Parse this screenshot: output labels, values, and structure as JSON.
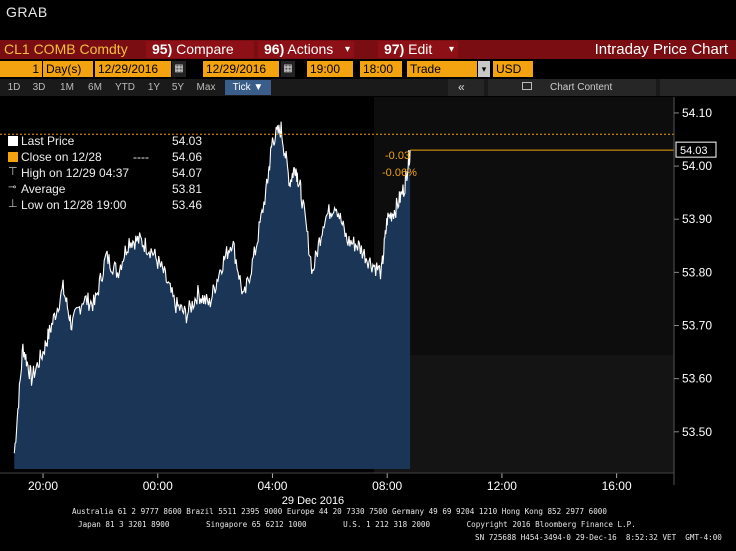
{
  "app_title": "GRAB",
  "command_bar": {
    "ticker": "CL1 COMB Comdty",
    "compare": {
      "num": "95)",
      "label": "Compare"
    },
    "actions": {
      "num": "96)",
      "label": "Actions"
    },
    "edit": {
      "num": "97)",
      "label": "Edit"
    },
    "screen_title": "Intraday Price Chart"
  },
  "settings": {
    "period_count": "1",
    "period_unit": "Day(s)",
    "start_date": "12/29/2016",
    "end_date": "12/29/2016",
    "start_time": "19:00",
    "end_time": "18:00",
    "field": "Trade",
    "currency": "USD"
  },
  "toolbar": {
    "ranges": [
      "1D",
      "3D",
      "1M",
      "6M",
      "YTD",
      "1Y",
      "5Y",
      "Max"
    ],
    "interval": "Tick",
    "chart_content": "Chart Content"
  },
  "legend": {
    "last_price": {
      "label": "Last Price",
      "value": "54.03"
    },
    "close": {
      "label": "Close on 12/28",
      "dashes": "----",
      "value": "54.06"
    },
    "high": {
      "label": "High on 12/29 04:37",
      "value": "54.07"
    },
    "average": {
      "label": "Average",
      "value": "53.81"
    },
    "low": {
      "label": "Low on 12/28 19:00",
      "value": "53.46"
    }
  },
  "change": {
    "abs": "-0.03",
    "pct": "-0.06%"
  },
  "colors": {
    "accent_orange": "#f2a30f",
    "command_red": "#7a0d12",
    "area_fill": "#1b3557",
    "line": "#ffffff"
  },
  "chart_data": {
    "type": "area",
    "x_tick_labels": [
      "20:00",
      "00:00",
      "04:00",
      "08:00",
      "12:00",
      "16:00"
    ],
    "date_label": "29 Dec 2016",
    "y_tick_labels": [
      "54.10",
      "54.00",
      "53.90",
      "53.80",
      "53.70",
      "53.60",
      "53.50"
    ],
    "y_ticks": [
      54.1,
      54.0,
      53.9,
      53.8,
      53.7,
      53.6,
      53.5
    ],
    "ylim": [
      53.43,
      54.13
    ],
    "x_range_hours": [
      18.5,
      42
    ],
    "last_price_label": "54.03",
    "last_price": 54.03,
    "prev_close": 54.06,
    "series": [
      {
        "x": [
          19.0,
          19.3,
          19.6,
          20.0,
          20.3,
          20.7,
          21.0,
          21.4,
          21.8,
          22.2,
          22.6,
          23.0,
          23.4,
          23.8,
          24.2,
          24.6,
          25.0,
          25.4,
          25.8,
          26.2,
          26.6,
          27.0,
          27.4,
          27.8,
          28.0,
          28.3,
          28.6,
          28.8,
          29.0,
          29.4,
          29.8,
          30.2,
          30.6,
          31.0,
          31.4,
          31.8,
          32.0,
          32.3,
          32.6,
          32.8
        ],
        "y": [
          53.46,
          53.66,
          53.6,
          53.65,
          53.7,
          53.77,
          53.7,
          53.75,
          53.74,
          53.83,
          53.8,
          53.86,
          53.86,
          53.84,
          53.8,
          53.74,
          53.72,
          53.76,
          53.74,
          53.81,
          53.86,
          53.75,
          53.84,
          53.96,
          54.05,
          54.07,
          53.97,
          54.0,
          53.95,
          53.8,
          53.9,
          53.93,
          53.86,
          53.85,
          53.82,
          53.8,
          53.9,
          53.92,
          53.96,
          54.03
        ]
      }
    ]
  },
  "footer": {
    "line1": "Australia 61 2 9777 8600 Brazil 5511 2395 9000 Europe 44 20 7330 7500 Germany 49 69 9204 1210 Hong Kong 852 2977 6000",
    "line2": "Japan 81 3 3201 8900        Singapore 65 6212 1000        U.S. 1 212 318 2000        Copyright 2016 Bloomberg Finance L.P.",
    "line3": "SN 725688 H454-3494-0 29-Dec-16  8:52:32 VET  GMT-4:00"
  }
}
